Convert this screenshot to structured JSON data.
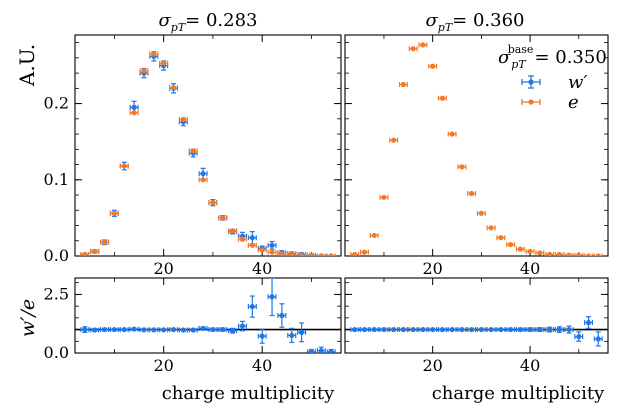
{
  "figure": {
    "ylabel_top": "A.U.",
    "ylabel_ratio": "w′/e",
    "xlabel": "charge multiplicity",
    "legend_title": "σ_pT^base = 0.350",
    "legend_sigma": "σ",
    "legend_sub": "pT",
    "legend_sup": "base",
    "legend_eq": "= 0.350",
    "legend_w": "w′",
    "legend_e": "e",
    "colors": {
      "w": "#1f77e8",
      "e": "#f07a2a",
      "line": "#000000"
    }
  },
  "chart_data": [
    {
      "type": "scatter",
      "panel": "top-left",
      "title": "σ_pT = 0.283",
      "title_sigma": "σ",
      "title_sub": "pT",
      "title_value": "= 0.283",
      "xlim": [
        2,
        56
      ],
      "ylim": [
        0,
        0.29
      ],
      "xticks": [
        20,
        40
      ],
      "yticks": [
        0,
        0.1,
        0.2
      ],
      "ytick_labels": [
        "0.0",
        "0.1",
        "0.2"
      ],
      "series": [
        {
          "name": "w′",
          "x": [
            4,
            6,
            8,
            10,
            12,
            14,
            16,
            18,
            20,
            22,
            24,
            26,
            28,
            30,
            32,
            34,
            36,
            38,
            40,
            42,
            44,
            46,
            48,
            50,
            52,
            54
          ],
          "y": [
            0.002,
            0.006,
            0.018,
            0.056,
            0.118,
            0.195,
            0.24,
            0.262,
            0.25,
            0.22,
            0.176,
            0.135,
            0.108,
            0.07,
            0.05,
            0.032,
            0.026,
            0.024,
            0.01,
            0.014,
            0.004,
            0.003,
            0.002,
            0.001,
            0.0,
            0.0
          ],
          "yerr": [
            0.001,
            0.002,
            0.003,
            0.004,
            0.005,
            0.008,
            0.006,
            0.006,
            0.006,
            0.006,
            0.005,
            0.005,
            0.007,
            0.004,
            0.003,
            0.003,
            0.005,
            0.008,
            0.003,
            0.005,
            0.003,
            0.002,
            0.002,
            0.001,
            0.001,
            0.0
          ]
        },
        {
          "name": "e",
          "x": [
            4,
            6,
            8,
            10,
            12,
            14,
            16,
            18,
            20,
            22,
            24,
            26,
            28,
            30,
            32,
            34,
            36,
            38,
            40,
            42,
            44,
            46,
            48,
            50,
            52,
            54
          ],
          "y": [
            0.002,
            0.006,
            0.018,
            0.056,
            0.118,
            0.188,
            0.243,
            0.265,
            0.253,
            0.221,
            0.179,
            0.138,
            0.1,
            0.07,
            0.05,
            0.033,
            0.022,
            0.014,
            0.008,
            0.005,
            0.003,
            0.002,
            0.001,
            0.001,
            0.0,
            0.0
          ]
        }
      ]
    },
    {
      "type": "scatter",
      "panel": "top-right",
      "title": "σ_pT = 0.360",
      "title_sigma": "σ",
      "title_sub": "pT",
      "title_value": "= 0.360",
      "xlim": [
        2,
        56
      ],
      "ylim": [
        0,
        0.29
      ],
      "xticks": [
        20,
        40
      ],
      "yticks": [
        0,
        0.1,
        0.2
      ],
      "series": [
        {
          "name": "e",
          "x": [
            4,
            6,
            8,
            10,
            12,
            14,
            16,
            18,
            20,
            22,
            24,
            26,
            28,
            30,
            32,
            34,
            36,
            38,
            40,
            42,
            44,
            46,
            48,
            50,
            52,
            54
          ],
          "y": [
            0.002,
            0.005,
            0.027,
            0.077,
            0.152,
            0.225,
            0.272,
            0.277,
            0.249,
            0.207,
            0.16,
            0.117,
            0.082,
            0.056,
            0.037,
            0.024,
            0.015,
            0.009,
            0.006,
            0.004,
            0.002,
            0.002,
            0.001,
            0.001,
            0.0,
            0.0
          ]
        }
      ]
    },
    {
      "type": "scatter",
      "panel": "bottom-left",
      "xlim": [
        2,
        56
      ],
      "ylim": [
        0,
        3.2
      ],
      "xticks": [
        20,
        40
      ],
      "yticks": [
        0,
        2.5
      ],
      "ytick_labels": [
        "0.0",
        "2.5"
      ],
      "reference_line": 1.0,
      "series": [
        {
          "name": "w′/e",
          "x": [
            4,
            6,
            8,
            10,
            12,
            14,
            16,
            18,
            20,
            22,
            24,
            26,
            28,
            30,
            32,
            34,
            36,
            38,
            40,
            42,
            44,
            46,
            48,
            50,
            52,
            54
          ],
          "y": [
            1.0,
            0.98,
            1.0,
            1.0,
            1.0,
            1.02,
            0.99,
            0.99,
            0.99,
            1.0,
            0.98,
            0.98,
            1.05,
            1.0,
            1.0,
            0.95,
            1.15,
            1.98,
            0.72,
            2.4,
            1.6,
            0.75,
            0.88,
            0.05,
            0.1,
            0.05
          ],
          "yerr": [
            0.12,
            0.06,
            0.05,
            0.04,
            0.03,
            0.03,
            0.03,
            0.03,
            0.03,
            0.03,
            0.03,
            0.04,
            0.06,
            0.06,
            0.07,
            0.1,
            0.2,
            0.45,
            0.3,
            0.8,
            0.5,
            0.3,
            0.4,
            0.1,
            0.15,
            0.1
          ]
        }
      ]
    },
    {
      "type": "scatter",
      "panel": "bottom-right",
      "xlim": [
        2,
        56
      ],
      "ylim": [
        0,
        3.2
      ],
      "xticks": [
        20,
        40
      ],
      "yticks": [
        0,
        2.5
      ],
      "reference_line": 1.0,
      "series": [
        {
          "name": "w′/e",
          "x": [
            4,
            6,
            8,
            10,
            12,
            14,
            16,
            18,
            20,
            22,
            24,
            26,
            28,
            30,
            32,
            34,
            36,
            38,
            40,
            42,
            44,
            46,
            48,
            50,
            52,
            54
          ],
          "y": [
            1.0,
            1.0,
            1.0,
            1.0,
            1.0,
            1.0,
            1.0,
            1.0,
            1.0,
            1.0,
            1.0,
            1.0,
            1.0,
            1.0,
            1.0,
            1.0,
            1.0,
            1.0,
            1.0,
            1.0,
            1.0,
            1.0,
            1.0,
            0.7,
            1.3,
            0.6
          ],
          "yerr": [
            0.04,
            0.03,
            0.02,
            0.02,
            0.02,
            0.02,
            0.02,
            0.02,
            0.02,
            0.02,
            0.02,
            0.02,
            0.02,
            0.03,
            0.03,
            0.04,
            0.05,
            0.06,
            0.07,
            0.08,
            0.1,
            0.12,
            0.15,
            0.2,
            0.25,
            0.3
          ]
        }
      ]
    }
  ]
}
